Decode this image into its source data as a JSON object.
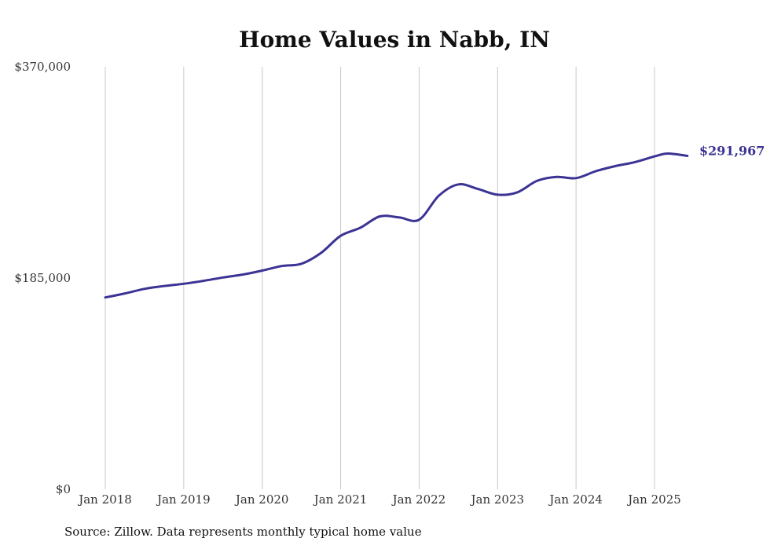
{
  "chart_data": {
    "type": "line",
    "title": "Home Values in Nabb, IN",
    "xlabel": "",
    "ylabel": "",
    "ylim": [
      0,
      370000
    ],
    "y_ticks": [
      "$370,000",
      "$185,000",
      "$0"
    ],
    "y_tick_values": [
      370000,
      185000,
      0
    ],
    "x_ticks": [
      "Jan 2018",
      "Jan 2019",
      "Jan 2020",
      "Jan 2021",
      "Jan 2022",
      "Jan 2023",
      "Jan 2024",
      "Jan 2025"
    ],
    "x_tick_values": [
      2018,
      2019,
      2020,
      2021,
      2022,
      2023,
      2024,
      2025
    ],
    "xlim": [
      2018,
      2025.42
    ],
    "grid": "vertical",
    "series": [
      {
        "name": "Typical home value",
        "color": "#3b3494",
        "end_label": "$291,967",
        "points": [
          [
            2018.0,
            168000
          ],
          [
            2018.25,
            171500
          ],
          [
            2018.5,
            175500
          ],
          [
            2018.75,
            178000
          ],
          [
            2019.0,
            180000
          ],
          [
            2019.25,
            182500
          ],
          [
            2019.5,
            185500
          ],
          [
            2019.75,
            188000
          ],
          [
            2020.0,
            191500
          ],
          [
            2020.25,
            195500
          ],
          [
            2020.5,
            197500
          ],
          [
            2020.75,
            207000
          ],
          [
            2021.0,
            222000
          ],
          [
            2021.25,
            229000
          ],
          [
            2021.5,
            239000
          ],
          [
            2021.75,
            238000
          ],
          [
            2022.0,
            236000
          ],
          [
            2022.25,
            257000
          ],
          [
            2022.5,
            267000
          ],
          [
            2022.75,
            263000
          ],
          [
            2023.0,
            258000
          ],
          [
            2023.25,
            260000
          ],
          [
            2023.5,
            270000
          ],
          [
            2023.75,
            273500
          ],
          [
            2024.0,
            272500
          ],
          [
            2024.25,
            278500
          ],
          [
            2024.5,
            283000
          ],
          [
            2024.75,
            286500
          ],
          [
            2025.0,
            291500
          ],
          [
            2025.17,
            294000
          ],
          [
            2025.42,
            291967
          ]
        ]
      }
    ]
  },
  "footer": {
    "source": "Source: Zillow. Data represents monthly typical home value"
  }
}
